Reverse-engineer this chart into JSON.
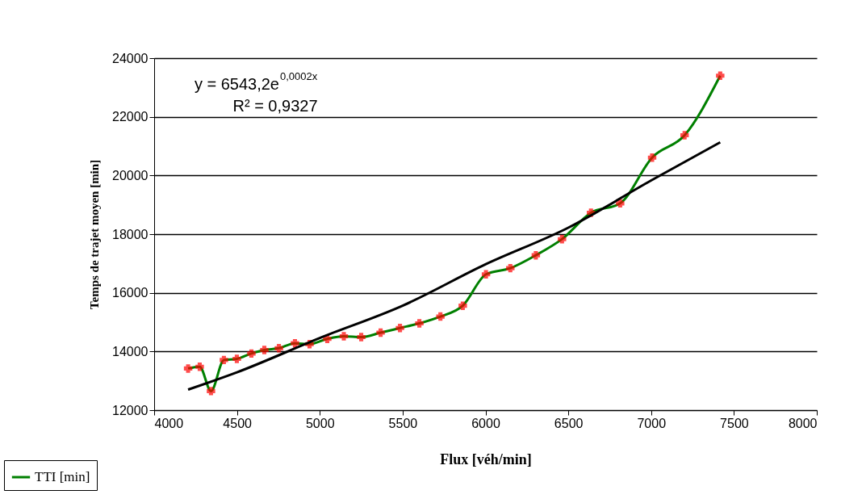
{
  "chart_data": {
    "type": "line",
    "xlabel": "Flux [véh/min]",
    "ylabel": "Temps de trajet moyen [min]",
    "annotations": [
      "y = 6543,2e$^{0,0002x}$",
      "R² = 0,9327"
    ],
    "xlim": [
      4000,
      8000
    ],
    "xticks": [
      4000,
      4500,
      5000,
      5500,
      6000,
      6500,
      7000,
      7500,
      8000
    ],
    "ylim": [
      12000,
      24000
    ],
    "yticks": [
      12000,
      14000,
      16000,
      18000,
      20000,
      22000,
      24000
    ],
    "grid": "y",
    "legend": "bottom left",
    "marker": "cross",
    "line_style": "solid",
    "series": [
      {
        "name": "TTI [min]",
        "color": "#008000",
        "x": [
          4205,
          4275,
          4343,
          4421,
          4499,
          4587,
          4665,
          4753,
          4850,
          4938,
          5045,
          5145,
          5250,
          5367,
          5484,
          5601,
          5728,
          5863,
          6003,
          6150,
          6304,
          6462,
          6637,
          6813,
          7006,
          7202,
          7417
        ],
        "values": [
          13420,
          13480,
          12650,
          13710,
          13750,
          13930,
          14050,
          14110,
          14280,
          14250,
          14430,
          14520,
          14490,
          14640,
          14800,
          14960,
          15190,
          15560,
          16630,
          16840,
          17280,
          17830,
          18730,
          19050,
          20610,
          21370,
          23400
        ],
        "colors": [
          "#ff0000",
          "#ff0000",
          "#ff0000",
          "#ff0000",
          "#ff0000",
          "#ff0000",
          "#ff0000",
          "#ff0000",
          "#ff0000",
          "#ff0000",
          "#ff0000",
          "#ff0000",
          "#ff0000",
          "#ff0000",
          "#ff0000",
          "#ff0000",
          "#ff0000",
          "#ff0000",
          "#ff0000",
          "#ff0000",
          "#ff0000",
          "#ff0000",
          "#ff0000",
          "#ff0000",
          "#ff0000",
          "#ff0000",
          "#ff0000"
        ]
      },
      {
        "type": "line",
        "color": "#000000",
        "marker": "none",
        "x": [
          4205,
          4500,
          5000,
          5500,
          6000,
          6500,
          7000,
          7417
        ],
        "values": [
          12700,
          13290,
          14460,
          15560,
          16970,
          18220,
          19830,
          21130
        ]
      }
    ]
  }
}
